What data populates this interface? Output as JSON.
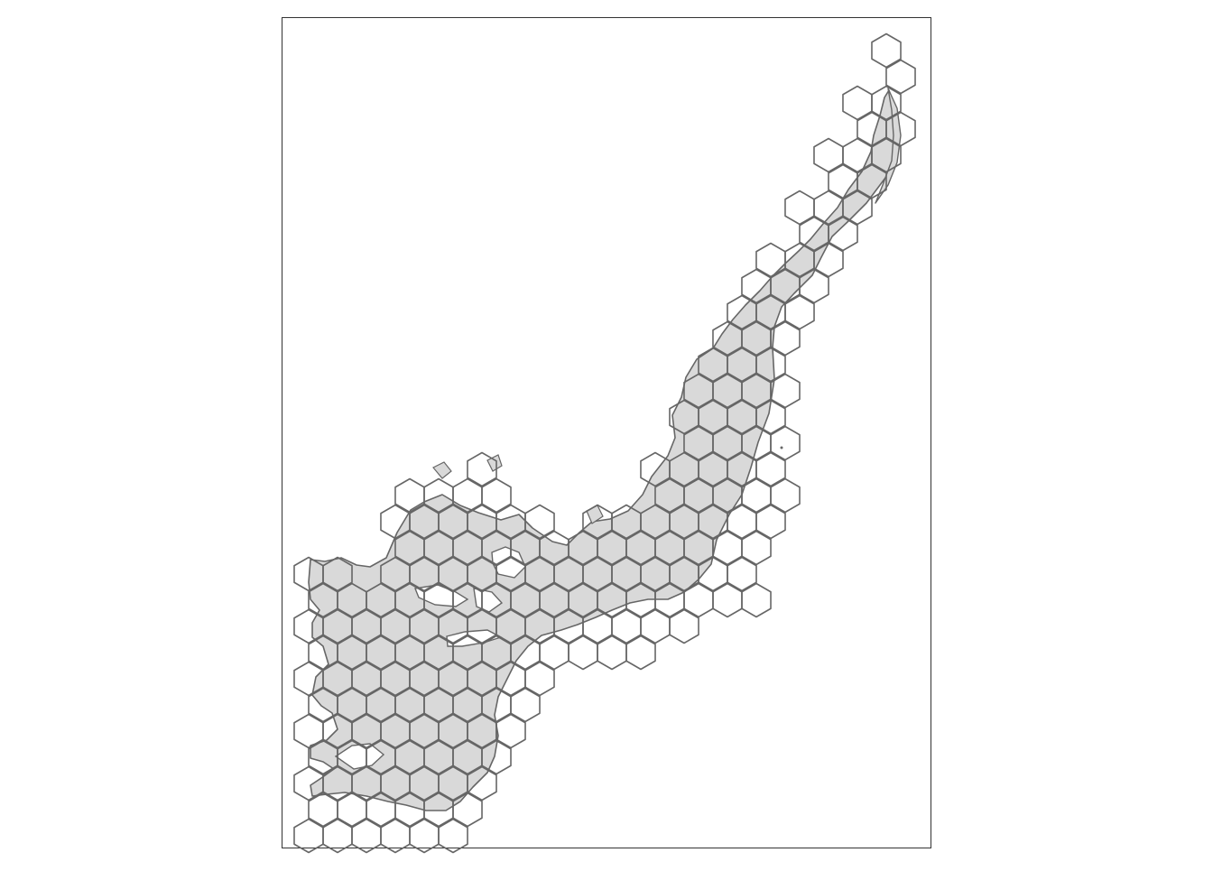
{
  "map": {
    "land_fill": "#d9d9d9",
    "stroke_color": "#666666",
    "frame_color": "#333333",
    "background": "#ffffff",
    "hex_grid": {
      "pitch_x": 32,
      "row_step": 29,
      "radius": 18.5
    },
    "hex_rows": [
      {
        "r": 0,
        "cells": [
          {
            "c": 20,
            "in": false
          }
        ]
      },
      {
        "r": 1,
        "cells": [
          {
            "c": 20,
            "in": false
          }
        ]
      },
      {
        "r": 2,
        "cells": [
          {
            "c": 19,
            "in": false
          },
          {
            "c": 20,
            "in": false
          }
        ]
      },
      {
        "r": 3,
        "cells": [
          {
            "c": 19,
            "in": false
          },
          {
            "c": 20,
            "in": true
          }
        ]
      },
      {
        "r": 4,
        "cells": [
          {
            "c": 18,
            "in": false
          },
          {
            "c": 19,
            "in": true
          },
          {
            "c": 20,
            "in": false
          }
        ]
      },
      {
        "r": 5,
        "cells": [
          {
            "c": 18,
            "in": false
          },
          {
            "c": 19,
            "in": true
          }
        ]
      },
      {
        "r": 6,
        "cells": [
          {
            "c": 17,
            "in": false
          },
          {
            "c": 18,
            "in": true
          },
          {
            "c": 19,
            "in": false
          }
        ]
      },
      {
        "r": 7,
        "cells": [
          {
            "c": 17,
            "in": false
          },
          {
            "c": 18,
            "in": true
          }
        ]
      },
      {
        "r": 8,
        "cells": [
          {
            "c": 16,
            "in": false
          },
          {
            "c": 17,
            "in": true
          },
          {
            "c": 18,
            "in": false
          }
        ]
      },
      {
        "r": 9,
        "cells": [
          {
            "c": 15,
            "in": false
          },
          {
            "c": 16,
            "in": true
          },
          {
            "c": 17,
            "in": false
          }
        ]
      },
      {
        "r": 10,
        "cells": [
          {
            "c": 15,
            "in": false
          },
          {
            "c": 16,
            "in": true
          },
          {
            "c": 17,
            "in": false
          }
        ]
      },
      {
        "r": 11,
        "cells": [
          {
            "c": 14,
            "in": false
          },
          {
            "c": 15,
            "in": true
          },
          {
            "c": 16,
            "in": false
          }
        ]
      },
      {
        "r": 12,
        "cells": [
          {
            "c": 14,
            "in": false
          },
          {
            "c": 15,
            "in": true
          },
          {
            "c": 16,
            "in": false
          }
        ]
      },
      {
        "r": 13,
        "cells": [
          {
            "c": 13,
            "in": false
          },
          {
            "c": 14,
            "in": true
          },
          {
            "c": 15,
            "in": true
          },
          {
            "c": 16,
            "in": false
          }
        ]
      },
      {
        "r": 14,
        "cells": [
          {
            "c": 13,
            "in": false
          },
          {
            "c": 14,
            "in": true
          },
          {
            "c": 15,
            "in": true
          },
          {
            "c": 16,
            "in": false
          }
        ]
      },
      {
        "r": 15,
        "cells": [
          {
            "c": 13,
            "in": false
          },
          {
            "c": 14,
            "in": true
          },
          {
            "c": 15,
            "in": true
          },
          {
            "c": 16,
            "in": false
          }
        ]
      },
      {
        "r": 16,
        "cells": [
          {
            "c": 6,
            "in": false
          },
          {
            "c": 12,
            "in": false
          },
          {
            "c": 13,
            "in": true
          },
          {
            "c": 14,
            "in": true
          },
          {
            "c": 15,
            "in": true
          },
          {
            "c": 16,
            "in": false
          }
        ]
      },
      {
        "r": 17,
        "cells": [
          {
            "c": 3,
            "in": false
          },
          {
            "c": 4,
            "in": false
          },
          {
            "c": 5,
            "in": false
          },
          {
            "c": 6,
            "in": false
          },
          {
            "c": 12,
            "in": false
          },
          {
            "c": 13,
            "in": true
          },
          {
            "c": 14,
            "in": true
          },
          {
            "c": 15,
            "in": true
          },
          {
            "c": 16,
            "in": false
          }
        ]
      },
      {
        "r": 18,
        "cells": [
          {
            "c": 3,
            "in": false
          },
          {
            "c": 4,
            "in": false
          },
          {
            "c": 5,
            "in": false
          },
          {
            "c": 6,
            "in": false
          },
          {
            "c": 7,
            "in": false
          },
          {
            "c": 8,
            "in": false
          },
          {
            "c": 10,
            "in": false
          },
          {
            "c": 11,
            "in": false
          },
          {
            "c": 12,
            "in": true
          },
          {
            "c": 13,
            "in": true
          },
          {
            "c": 14,
            "in": true
          },
          {
            "c": 15,
            "in": true
          },
          {
            "c": 16,
            "in": false
          }
        ]
      },
      {
        "r": 19,
        "cells": [
          {
            "c": 3,
            "in": false
          },
          {
            "c": 4,
            "in": true
          },
          {
            "c": 5,
            "in": true
          },
          {
            "c": 6,
            "in": true
          },
          {
            "c": 7,
            "in": true
          },
          {
            "c": 8,
            "in": false
          },
          {
            "c": 9,
            "in": false
          },
          {
            "c": 10,
            "in": false
          },
          {
            "c": 11,
            "in": true
          },
          {
            "c": 12,
            "in": true
          },
          {
            "c": 13,
            "in": true
          },
          {
            "c": 14,
            "in": true
          },
          {
            "c": 15,
            "in": false
          }
        ]
      },
      {
        "r": 20,
        "cells": [
          {
            "c": 0,
            "in": false
          },
          {
            "c": 1,
            "in": false
          },
          {
            "c": 3,
            "in": false
          },
          {
            "c": 4,
            "in": true
          },
          {
            "c": 5,
            "in": true
          },
          {
            "c": 6,
            "in": true
          },
          {
            "c": 7,
            "in": true
          },
          {
            "c": 8,
            "in": true
          },
          {
            "c": 9,
            "in": true
          },
          {
            "c": 10,
            "in": true
          },
          {
            "c": 11,
            "in": true
          },
          {
            "c": 12,
            "in": true
          },
          {
            "c": 13,
            "in": true
          },
          {
            "c": 14,
            "in": true
          },
          {
            "c": 15,
            "in": false
          }
        ]
      },
      {
        "r": 21,
        "cells": [
          {
            "c": 0,
            "in": false
          },
          {
            "c": 1,
            "in": false
          },
          {
            "c": 2,
            "in": false
          },
          {
            "c": 3,
            "in": true
          },
          {
            "c": 4,
            "in": true
          },
          {
            "c": 5,
            "in": true
          },
          {
            "c": 6,
            "in": true
          },
          {
            "c": 7,
            "in": true
          },
          {
            "c": 8,
            "in": true
          },
          {
            "c": 9,
            "in": true
          },
          {
            "c": 10,
            "in": true
          },
          {
            "c": 11,
            "in": true
          },
          {
            "c": 12,
            "in": true
          },
          {
            "c": 13,
            "in": true
          },
          {
            "c": 14,
            "in": true
          },
          {
            "c": 15,
            "in": false
          }
        ]
      },
      {
        "r": 22,
        "cells": [
          {
            "c": 0,
            "in": false
          },
          {
            "c": 1,
            "in": true
          },
          {
            "c": 2,
            "in": true
          },
          {
            "c": 3,
            "in": true
          },
          {
            "c": 4,
            "in": true
          },
          {
            "c": 5,
            "in": true
          },
          {
            "c": 6,
            "in": true
          },
          {
            "c": 7,
            "in": true
          },
          {
            "c": 8,
            "in": true
          },
          {
            "c": 9,
            "in": true
          },
          {
            "c": 10,
            "in": true
          },
          {
            "c": 11,
            "in": true
          },
          {
            "c": 12,
            "in": true
          },
          {
            "c": 13,
            "in": false
          }
        ]
      },
      {
        "r": 23,
        "cells": [
          {
            "c": 0,
            "in": false
          },
          {
            "c": 1,
            "in": true
          },
          {
            "c": 2,
            "in": true
          },
          {
            "c": 3,
            "in": true
          },
          {
            "c": 4,
            "in": true
          },
          {
            "c": 5,
            "in": true
          },
          {
            "c": 6,
            "in": true
          },
          {
            "c": 7,
            "in": true
          },
          {
            "c": 8,
            "in": true
          },
          {
            "c": 9,
            "in": true
          },
          {
            "c": 10,
            "in": false
          },
          {
            "c": 11,
            "in": false
          }
        ]
      },
      {
        "r": 24,
        "cells": [
          {
            "c": 0,
            "in": false
          },
          {
            "c": 1,
            "in": true
          },
          {
            "c": 2,
            "in": true
          },
          {
            "c": 3,
            "in": true
          },
          {
            "c": 4,
            "in": true
          },
          {
            "c": 5,
            "in": true
          },
          {
            "c": 6,
            "in": true
          },
          {
            "c": 7,
            "in": true
          },
          {
            "c": 8,
            "in": false
          }
        ]
      },
      {
        "r": 25,
        "cells": [
          {
            "c": 0,
            "in": false
          },
          {
            "c": 1,
            "in": true
          },
          {
            "c": 2,
            "in": true
          },
          {
            "c": 3,
            "in": true
          },
          {
            "c": 4,
            "in": true
          },
          {
            "c": 5,
            "in": true
          },
          {
            "c": 6,
            "in": true
          },
          {
            "c": 7,
            "in": false
          }
        ]
      },
      {
        "r": 26,
        "cells": [
          {
            "c": 0,
            "in": false
          },
          {
            "c": 1,
            "in": true
          },
          {
            "c": 2,
            "in": true
          },
          {
            "c": 3,
            "in": true
          },
          {
            "c": 4,
            "in": true
          },
          {
            "c": 5,
            "in": true
          },
          {
            "c": 6,
            "in": true
          },
          {
            "c": 7,
            "in": false
          }
        ]
      },
      {
        "r": 27,
        "cells": [
          {
            "c": 0,
            "in": false
          },
          {
            "c": 1,
            "in": true
          },
          {
            "c": 2,
            "in": true
          },
          {
            "c": 3,
            "in": true
          },
          {
            "c": 4,
            "in": true
          },
          {
            "c": 5,
            "in": true
          },
          {
            "c": 6,
            "in": false
          }
        ]
      },
      {
        "r": 28,
        "cells": [
          {
            "c": 0,
            "in": false
          },
          {
            "c": 1,
            "in": true
          },
          {
            "c": 2,
            "in": true
          },
          {
            "c": 3,
            "in": true
          },
          {
            "c": 4,
            "in": true
          },
          {
            "c": 5,
            "in": true
          },
          {
            "c": 6,
            "in": false
          }
        ]
      },
      {
        "r": 29,
        "cells": [
          {
            "c": 0,
            "in": false
          },
          {
            "c": 1,
            "in": true
          },
          {
            "c": 2,
            "in": true
          },
          {
            "c": 3,
            "in": true
          },
          {
            "c": 4,
            "in": true
          },
          {
            "c": 5,
            "in": true
          }
        ]
      },
      {
        "r": 30,
        "cells": [
          {
            "c": 0,
            "in": false
          },
          {
            "c": 1,
            "in": false
          },
          {
            "c": 2,
            "in": false
          },
          {
            "c": 3,
            "in": false
          },
          {
            "c": 4,
            "in": false
          },
          {
            "c": 5,
            "in": false
          }
        ]
      }
    ]
  }
}
